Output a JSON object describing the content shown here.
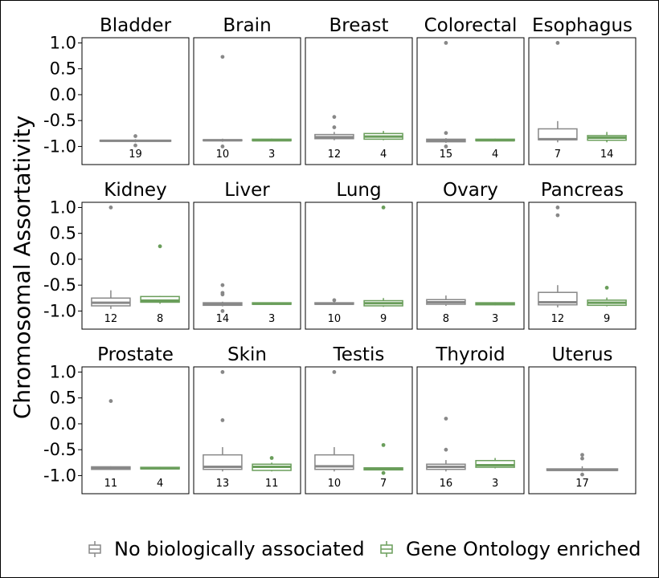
{
  "chart_data": {
    "type": "boxplot",
    "ylabel": "Chromosomal Assortativity",
    "ylim": [
      -1.35,
      1.1
    ],
    "yticks": [
      1.0,
      0.5,
      0.0,
      -0.5,
      -1.0
    ],
    "ytick_labels": [
      "1.0",
      "0.5",
      "0.0",
      "-0.5",
      "-1.0"
    ],
    "legend": {
      "placement": "bottom"
    },
    "series": [
      {
        "name": "No biologically associated",
        "color": "#888888"
      },
      {
        "name": "Gene Ontology enriched",
        "color": "#6a9e5b"
      }
    ],
    "facets": [
      {
        "title": "Bladder",
        "groups": [
          {
            "n": "19",
            "min": -0.92,
            "q1": -0.9,
            "median": -0.89,
            "q3": -0.88,
            "max": -0.86,
            "outliers": [
              -0.8,
              -0.98
            ]
          }
        ]
      },
      {
        "title": "Brain",
        "groups": [
          {
            "n": "10",
            "min": -0.91,
            "q1": -0.89,
            "median": -0.88,
            "q3": -0.87,
            "max": -0.85,
            "outliers": [
              0.73,
              -1.0
            ]
          },
          {
            "n": "3",
            "min": -0.9,
            "q1": -0.89,
            "median": -0.88,
            "q3": -0.86,
            "max": -0.85,
            "outliers": []
          }
        ]
      },
      {
        "title": "Breast",
        "groups": [
          {
            "n": "12",
            "min": -0.88,
            "q1": -0.85,
            "median": -0.82,
            "q3": -0.77,
            "max": -0.72,
            "outliers": [
              -0.43,
              -0.63
            ]
          },
          {
            "n": "4",
            "min": -0.88,
            "q1": -0.86,
            "median": -0.81,
            "q3": -0.75,
            "max": -0.7,
            "outliers": []
          }
        ]
      },
      {
        "title": "Colorectal",
        "groups": [
          {
            "n": "15",
            "min": -0.93,
            "q1": -0.91,
            "median": -0.89,
            "q3": -0.86,
            "max": -0.84,
            "outliers": [
              1.0,
              -0.74,
              -1.0
            ]
          },
          {
            "n": "4",
            "min": -0.9,
            "q1": -0.89,
            "median": -0.88,
            "q3": -0.86,
            "max": -0.85,
            "outliers": []
          }
        ]
      },
      {
        "title": "Esophagus",
        "groups": [
          {
            "n": "7",
            "min": -0.92,
            "q1": -0.87,
            "median": -0.86,
            "q3": -0.66,
            "max": -0.51,
            "outliers": [
              1.0
            ]
          },
          {
            "n": "14",
            "min": -0.92,
            "q1": -0.88,
            "median": -0.83,
            "q3": -0.79,
            "max": -0.72,
            "outliers": []
          }
        ]
      },
      {
        "title": "Kidney",
        "groups": [
          {
            "n": "12",
            "min": -0.96,
            "q1": -0.9,
            "median": -0.84,
            "q3": -0.75,
            "max": -0.6,
            "outliers": [
              1.0
            ]
          },
          {
            "n": "8",
            "min": -0.86,
            "q1": -0.83,
            "median": -0.8,
            "q3": -0.72,
            "max": -0.71,
            "outliers": [
              0.25
            ]
          }
        ]
      },
      {
        "title": "Liver",
        "groups": [
          {
            "n": "14",
            "min": -0.91,
            "q1": -0.89,
            "median": -0.87,
            "q3": -0.84,
            "max": -0.82,
            "outliers": [
              -0.5,
              -0.65,
              -0.68,
              -1.0
            ]
          },
          {
            "n": "3",
            "min": -0.88,
            "q1": -0.87,
            "median": -0.86,
            "q3": -0.84,
            "max": -0.83,
            "outliers": []
          }
        ]
      },
      {
        "title": "Lung",
        "groups": [
          {
            "n": "10",
            "min": -0.88,
            "q1": -0.87,
            "median": -0.86,
            "q3": -0.84,
            "max": -0.8,
            "outliers": [
              -0.79
            ]
          },
          {
            "n": "9",
            "min": -0.92,
            "q1": -0.9,
            "median": -0.85,
            "q3": -0.8,
            "max": -0.75,
            "outliers": [
              1.0
            ]
          }
        ]
      },
      {
        "title": "Ovary",
        "groups": [
          {
            "n": "8",
            "min": -0.9,
            "q1": -0.87,
            "median": -0.83,
            "q3": -0.78,
            "max": -0.7,
            "outliers": []
          },
          {
            "n": "3",
            "min": -0.89,
            "q1": -0.88,
            "median": -0.86,
            "q3": -0.84,
            "max": -0.83,
            "outliers": []
          }
        ]
      },
      {
        "title": "Pancreas",
        "groups": [
          {
            "n": "12",
            "min": -0.93,
            "q1": -0.88,
            "median": -0.83,
            "q3": -0.64,
            "max": -0.5,
            "outliers": [
              1.0,
              0.85
            ]
          },
          {
            "n": "9",
            "min": -0.91,
            "q1": -0.89,
            "median": -0.84,
            "q3": -0.79,
            "max": -0.74,
            "outliers": [
              -0.55
            ]
          }
        ]
      },
      {
        "title": "Prostate",
        "groups": [
          {
            "n": "11",
            "min": -0.89,
            "q1": -0.88,
            "median": -0.86,
            "q3": -0.83,
            "max": -0.82,
            "outliers": [
              0.44
            ]
          },
          {
            "n": "4",
            "min": -0.88,
            "q1": -0.87,
            "median": -0.86,
            "q3": -0.84,
            "max": -0.83,
            "outliers": []
          }
        ]
      },
      {
        "title": "Skin",
        "groups": [
          {
            "n": "13",
            "min": -0.92,
            "q1": -0.88,
            "median": -0.83,
            "q3": -0.6,
            "max": -0.45,
            "outliers": [
              1.0,
              0.07
            ]
          },
          {
            "n": "11",
            "min": -0.92,
            "q1": -0.9,
            "median": -0.83,
            "q3": -0.78,
            "max": -0.75,
            "outliers": [
              -0.66
            ]
          }
        ]
      },
      {
        "title": "Testis",
        "groups": [
          {
            "n": "10",
            "min": -0.92,
            "q1": -0.88,
            "median": -0.82,
            "q3": -0.6,
            "max": -0.45,
            "outliers": [
              1.0
            ]
          },
          {
            "n": "7",
            "min": -0.9,
            "q1": -0.89,
            "median": -0.87,
            "q3": -0.85,
            "max": -0.84,
            "outliers": [
              -0.41,
              -0.95
            ]
          }
        ]
      },
      {
        "title": "Thyroid",
        "groups": [
          {
            "n": "16",
            "min": -0.92,
            "q1": -0.88,
            "median": -0.83,
            "q3": -0.78,
            "max": -0.7,
            "outliers": [
              0.1,
              -0.5
            ]
          },
          {
            "n": "3",
            "min": -0.86,
            "q1": -0.84,
            "median": -0.8,
            "q3": -0.71,
            "max": -0.66,
            "outliers": []
          }
        ]
      },
      {
        "title": "Uterus",
        "groups": [
          {
            "n": "17",
            "min": -0.92,
            "q1": -0.9,
            "median": -0.89,
            "q3": -0.87,
            "max": -0.82,
            "outliers": [
              -0.6,
              -0.67,
              -0.98
            ]
          }
        ]
      }
    ]
  }
}
